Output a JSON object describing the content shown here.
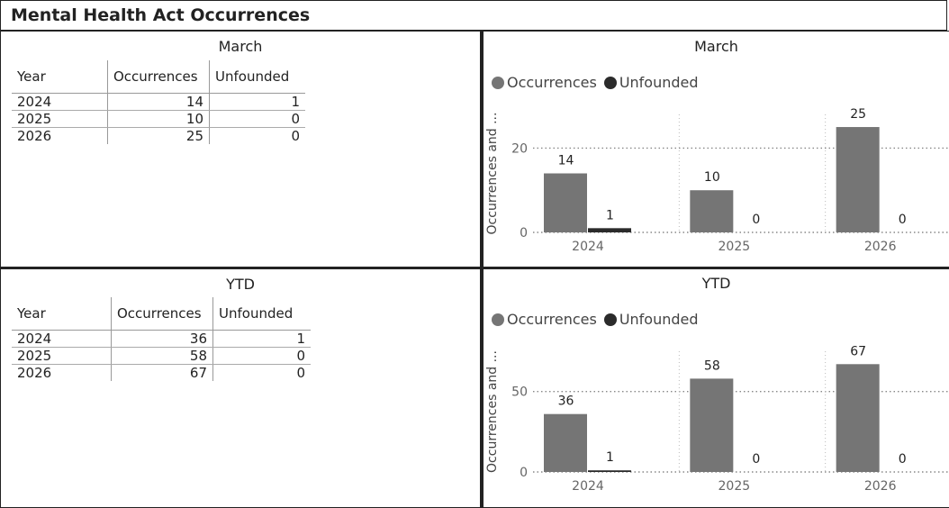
{
  "page_title": "Mental Health Act Occurrences",
  "colors": {
    "occurrences": "#757575",
    "unfounded": "#2b2b2b"
  },
  "march": {
    "table_title": "March",
    "columns": [
      "Year",
      "Occurrences",
      "Unfounded"
    ],
    "rows": [
      {
        "year": "2024",
        "occurrences": "14",
        "unfounded": "1"
      },
      {
        "year": "2025",
        "occurrences": "10",
        "unfounded": "0"
      },
      {
        "year": "2026",
        "occurrences": "25",
        "unfounded": "0"
      }
    ]
  },
  "ytd": {
    "table_title": "YTD",
    "columns": [
      "Year",
      "Occurrences",
      "Unfounded"
    ],
    "rows": [
      {
        "year": "2024",
        "occurrences": "36",
        "unfounded": "1"
      },
      {
        "year": "2025",
        "occurrences": "58",
        "unfounded": "0"
      },
      {
        "year": "2026",
        "occurrences": "67",
        "unfounded": "0"
      }
    ]
  },
  "chart_data": [
    {
      "type": "bar",
      "title": "March",
      "ylabel": "Occurrences and ...",
      "xlabel": "",
      "categories": [
        "2024",
        "2025",
        "2026"
      ],
      "series": [
        {
          "name": "Occurrences",
          "values": [
            14,
            10,
            25
          ]
        },
        {
          "name": "Unfounded",
          "values": [
            1,
            0,
            0
          ]
        }
      ],
      "yticks": [
        0,
        20
      ],
      "ylim": [
        0,
        28
      ],
      "legend": "top-left",
      "grid": true
    },
    {
      "type": "bar",
      "title": "YTD",
      "ylabel": "Occurrences and ...",
      "xlabel": "",
      "categories": [
        "2024",
        "2025",
        "2026"
      ],
      "series": [
        {
          "name": "Occurrences",
          "values": [
            36,
            58,
            67
          ]
        },
        {
          "name": "Unfounded",
          "values": [
            1,
            0,
            0
          ]
        }
      ],
      "yticks": [
        0,
        50
      ],
      "ylim": [
        0,
        75
      ],
      "legend": "top-left",
      "grid": true
    }
  ]
}
